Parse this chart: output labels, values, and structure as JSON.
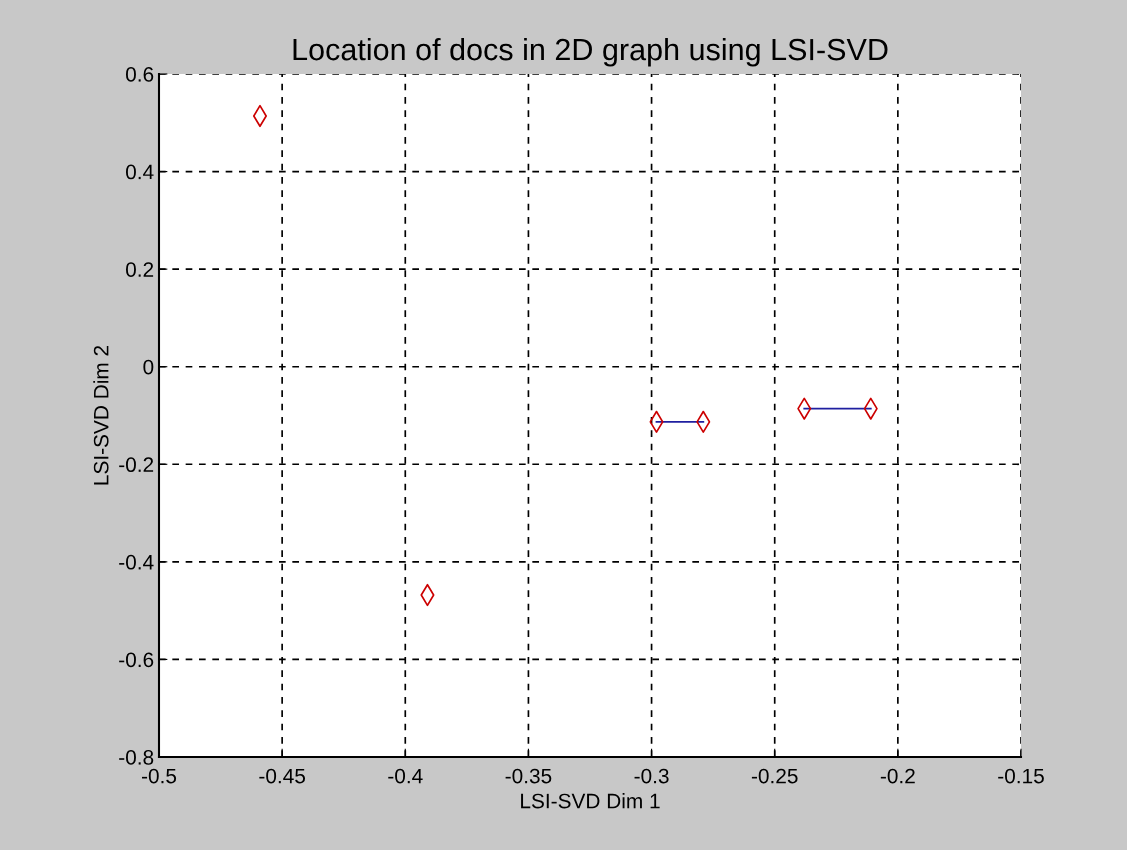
{
  "chart_data": {
    "type": "scatter",
    "title": "Location of docs in 2D graph using LSI-SVD",
    "xlabel": "LSI-SVD Dim 1",
    "ylabel": "LSI-SVD Dim 2",
    "series": [
      {
        "color": "#cc0000",
        "marker": "diamond",
        "x": [
          -0.459,
          -0.391,
          -0.298,
          -0.279,
          -0.238,
          -0.211
        ],
        "values": [
          0.514,
          -0.468,
          -0.113,
          -0.113,
          -0.086,
          -0.086
        ]
      },
      {
        "type": "line",
        "color": "#1f1fa0",
        "marker": "none",
        "line_style": "solid",
        "x": [
          -0.298,
          -0.279
        ],
        "values": [
          -0.113,
          -0.113
        ]
      },
      {
        "type": "line",
        "color": "#1f1fa0",
        "marker": "none",
        "line_style": "solid",
        "x": [
          -0.238,
          -0.211
        ],
        "values": [
          -0.086,
          -0.086
        ]
      }
    ],
    "xlim": [
      -0.5,
      -0.15
    ],
    "xticks": [
      -0.5,
      -0.45,
      -0.4,
      -0.35,
      -0.3,
      -0.25,
      -0.2,
      -0.15
    ],
    "ylim": [
      -0.8,
      0.6
    ],
    "yticks": [
      -0.8,
      -0.6,
      -0.4,
      -0.2,
      0,
      0.2,
      0.4,
      0.6
    ],
    "grid": true,
    "legend": false
  }
}
